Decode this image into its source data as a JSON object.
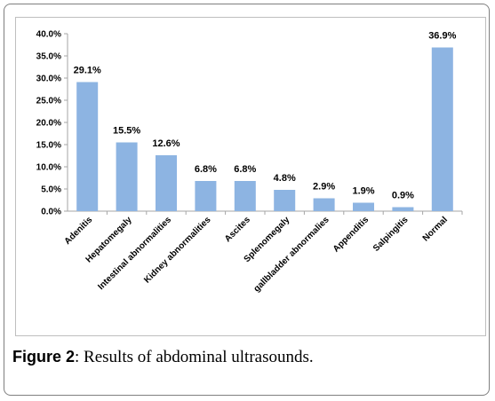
{
  "caption": {
    "figure_label": "Figure 2",
    "text": ": Results of abdominal ultrasounds."
  },
  "chart_data": {
    "type": "bar",
    "categories": [
      "Adenitis",
      "Hepatomegaly",
      "Intestinal  abnormalities",
      "Kidney abnormalities",
      "Ascites",
      "Splenomegaly",
      "gallbladder  abnormalies",
      "Appenditis",
      "Salpingitis",
      "Normal"
    ],
    "values": [
      29.1,
      15.5,
      12.6,
      6.8,
      6.8,
      4.8,
      2.9,
      1.9,
      0.9,
      36.9
    ],
    "data_labels": [
      "29.1%",
      "15.5%",
      "12.6%",
      "6.8%",
      "6.8%",
      "4.8%",
      "2.9%",
      "1.9%",
      "0.9%",
      "36.9%"
    ],
    "y_ticks": [
      "0.0%",
      "5.0%",
      "10.0%",
      "15.0%",
      "20.0%",
      "25.0%",
      "30.0%",
      "35.0%",
      "40.0%"
    ],
    "ylim": [
      0,
      40
    ],
    "bar_color": "#8db4e2",
    "grid": false,
    "legend": "none"
  }
}
